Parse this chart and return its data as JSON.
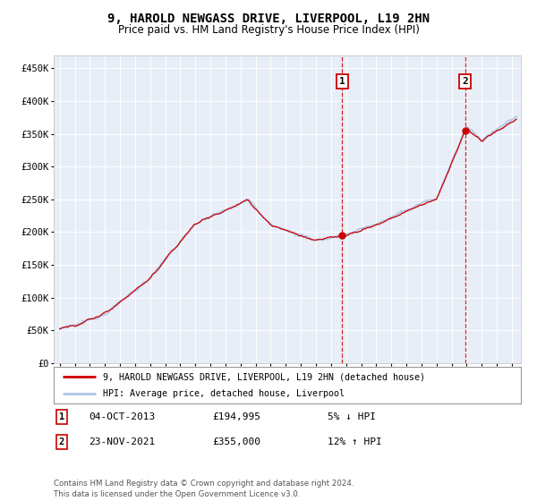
{
  "title": "9, HAROLD NEWGASS DRIVE, LIVERPOOL, L19 2HN",
  "subtitle": "Price paid vs. HM Land Registry's House Price Index (HPI)",
  "ylim": [
    0,
    470000
  ],
  "yticks": [
    0,
    50000,
    100000,
    150000,
    200000,
    250000,
    300000,
    350000,
    400000,
    450000
  ],
  "ytick_labels": [
    "£0",
    "£50K",
    "£100K",
    "£150K",
    "£200K",
    "£250K",
    "£300K",
    "£350K",
    "£400K",
    "£450K"
  ],
  "year_start": 1995,
  "year_end": 2025,
  "sale1_date": "04-OCT-2013",
  "sale1_price": 194995,
  "sale1_label": "5% ↓ HPI",
  "sale1_year": 2013.75,
  "sale2_date": "23-NOV-2021",
  "sale2_price": 355000,
  "sale2_label": "12% ↑ HPI",
  "sale2_year": 2021.9,
  "hpi_color": "#aec6e8",
  "sale_color": "#cc0000",
  "background_color": "#e8eef8",
  "legend_label1": "9, HAROLD NEWGASS DRIVE, LIVERPOOL, L19 2HN (detached house)",
  "legend_label2": "HPI: Average price, detached house, Liverpool",
  "footer": "Contains HM Land Registry data © Crown copyright and database right 2024.\nThis data is licensed under the Open Government Licence v3.0.",
  "sale1_box_label": "1",
  "sale2_box_label": "2"
}
